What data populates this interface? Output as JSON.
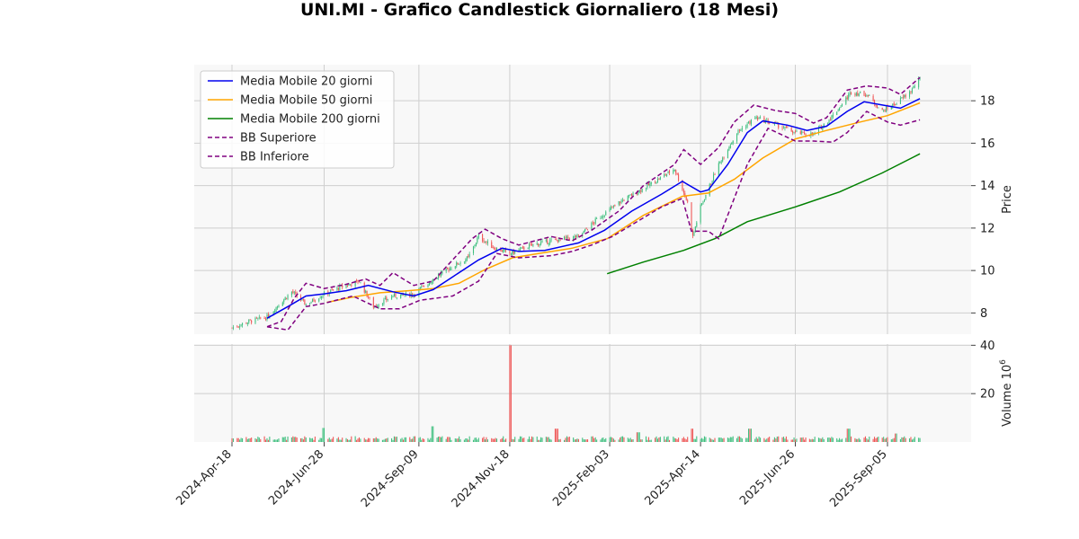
{
  "chart_data": {
    "type": "candlestick",
    "title": "UNI.MI - Grafico Candlestick Giornaliero (18 Mesi)",
    "ylabel_price": "Price",
    "ylabel_volume": "Volume",
    "volume_multiplier_base": "10",
    "volume_multiplier_exp": "6",
    "price_ylim": [
      7.0,
      19.7
    ],
    "price_yticks": [
      8,
      10,
      12,
      14,
      16,
      18
    ],
    "volume_ylim": [
      0,
      40.5
    ],
    "volume_yticks": [
      20,
      40
    ],
    "x_range": [
      "2024-04-18",
      "2025-09-30"
    ],
    "x_ticks": [
      "2024-Apr-18",
      "2024-Jun-28",
      "2024-Sep-09",
      "2024-Nov-18",
      "2025-Feb-03",
      "2025-Apr-14",
      "2025-Jun-26",
      "2025-Sep-05"
    ],
    "x_tick_dates": [
      "2024-04-18",
      "2024-06-28",
      "2024-09-09",
      "2024-11-18",
      "2025-02-03",
      "2025-04-14",
      "2025-06-26",
      "2025-09-05"
    ],
    "grid": true,
    "legend_position": "top-left",
    "colors": {
      "up": "#3fbf7f",
      "down": "#ef5555",
      "ma20": "#0000ee",
      "ma50": "#ffa500",
      "ma200": "#008000",
      "bb": "#800080"
    },
    "legend": [
      {
        "label": "Media Mobile 20 giorni",
        "color": "#0000ee",
        "dashed": false
      },
      {
        "label": "Media Mobile 50 giorni",
        "color": "#ffa500",
        "dashed": false
      },
      {
        "label": "Media Mobile 200 giorni",
        "color": "#008000",
        "dashed": false
      },
      {
        "label": "BB Superiore",
        "color": "#800080",
        "dashed": true
      },
      {
        "label": "BB Inferiore",
        "color": "#800080",
        "dashed": true
      }
    ],
    "close_path": [
      [
        "2024-04-18",
        7.3
      ],
      [
        "2024-05-01",
        7.6
      ],
      [
        "2024-05-15",
        7.8
      ],
      [
        "2024-05-24",
        8.4
      ],
      [
        "2024-06-03",
        9.0
      ],
      [
        "2024-06-14",
        8.4
      ],
      [
        "2024-06-28",
        8.9
      ],
      [
        "2024-07-10",
        9.2
      ],
      [
        "2024-07-25",
        9.5
      ],
      [
        "2024-08-05",
        8.3
      ],
      [
        "2024-08-20",
        8.8
      ],
      [
        "2024-09-05",
        8.9
      ],
      [
        "2024-09-20",
        9.6
      ],
      [
        "2024-10-05",
        10.2
      ],
      [
        "2024-10-17",
        10.6
      ],
      [
        "2024-10-25",
        11.6
      ],
      [
        "2024-11-05",
        11.1
      ],
      [
        "2024-11-18",
        10.8
      ],
      [
        "2024-12-05",
        11.2
      ],
      [
        "2024-12-20",
        11.4
      ],
      [
        "2025-01-10",
        11.6
      ],
      [
        "2025-01-24",
        12.4
      ],
      [
        "2025-02-10",
        13.2
      ],
      [
        "2025-02-24",
        13.7
      ],
      [
        "2025-03-10",
        14.2
      ],
      [
        "2025-03-25",
        14.8
      ],
      [
        "2025-04-04",
        13.2
      ],
      [
        "2025-04-08",
        11.6
      ],
      [
        "2025-04-14",
        13.0
      ],
      [
        "2025-04-28",
        15.0
      ],
      [
        "2025-05-12",
        16.5
      ],
      [
        "2025-05-26",
        17.2
      ],
      [
        "2025-06-10",
        16.9
      ],
      [
        "2025-06-26",
        16.5
      ],
      [
        "2025-07-10",
        16.4
      ],
      [
        "2025-07-25",
        17.3
      ],
      [
        "2025-08-08",
        18.4
      ],
      [
        "2025-08-20",
        18.3
      ],
      [
        "2025-09-01",
        17.5
      ],
      [
        "2025-09-12",
        17.9
      ],
      [
        "2025-09-22",
        18.4
      ],
      [
        "2025-09-30",
        19.0
      ]
    ],
    "ma20": [
      [
        "2024-05-15",
        7.75
      ],
      [
        "2024-05-31",
        8.3
      ],
      [
        "2024-06-14",
        8.8
      ],
      [
        "2024-06-28",
        8.9
      ],
      [
        "2024-07-15",
        9.05
      ],
      [
        "2024-08-01",
        9.3
      ],
      [
        "2024-08-20",
        9.0
      ],
      [
        "2024-09-05",
        8.8
      ],
      [
        "2024-09-20",
        9.1
      ],
      [
        "2024-10-05",
        9.7
      ],
      [
        "2024-10-25",
        10.5
      ],
      [
        "2024-11-12",
        11.05
      ],
      [
        "2024-11-25",
        10.9
      ],
      [
        "2024-12-15",
        10.95
      ],
      [
        "2025-01-10",
        11.3
      ],
      [
        "2025-01-30",
        11.9
      ],
      [
        "2025-02-20",
        12.8
      ],
      [
        "2025-03-15",
        13.6
      ],
      [
        "2025-03-31",
        14.2
      ],
      [
        "2025-04-14",
        13.7
      ],
      [
        "2025-04-20",
        13.8
      ],
      [
        "2025-05-05",
        15.0
      ],
      [
        "2025-05-20",
        16.5
      ],
      [
        "2025-06-01",
        17.05
      ],
      [
        "2025-06-20",
        16.85
      ],
      [
        "2025-07-05",
        16.6
      ],
      [
        "2025-07-20",
        16.8
      ],
      [
        "2025-08-05",
        17.5
      ],
      [
        "2025-08-18",
        17.95
      ],
      [
        "2025-09-01",
        17.8
      ],
      [
        "2025-09-15",
        17.65
      ],
      [
        "2025-09-30",
        18.1
      ]
    ],
    "ma50": [
      [
        "2024-06-30",
        8.5
      ],
      [
        "2024-07-20",
        8.75
      ],
      [
        "2024-08-10",
        8.95
      ],
      [
        "2024-09-01",
        9.05
      ],
      [
        "2024-09-20",
        9.15
      ],
      [
        "2024-10-10",
        9.4
      ],
      [
        "2024-10-30",
        10.05
      ],
      [
        "2024-11-20",
        10.6
      ],
      [
        "2024-12-10",
        10.8
      ],
      [
        "2025-01-05",
        11.05
      ],
      [
        "2025-02-01",
        11.5
      ],
      [
        "2025-03-01",
        12.6
      ],
      [
        "2025-03-31",
        13.5
      ],
      [
        "2025-04-20",
        13.65
      ],
      [
        "2025-05-10",
        14.3
      ],
      [
        "2025-06-01",
        15.3
      ],
      [
        "2025-06-26",
        16.2
      ],
      [
        "2025-07-20",
        16.6
      ],
      [
        "2025-08-15",
        17.0
      ],
      [
        "2025-09-05",
        17.3
      ],
      [
        "2025-09-30",
        17.9
      ]
    ],
    "ma200": [
      [
        "2025-02-01",
        9.85
      ],
      [
        "2025-03-01",
        10.4
      ],
      [
        "2025-04-01",
        10.95
      ],
      [
        "2025-04-25",
        11.5
      ],
      [
        "2025-05-20",
        12.3
      ],
      [
        "2025-06-26",
        13.0
      ],
      [
        "2025-07-30",
        13.7
      ],
      [
        "2025-09-01",
        14.6
      ],
      [
        "2025-09-30",
        15.5
      ]
    ],
    "bb_upper": [
      [
        "2024-05-15",
        7.35
      ],
      [
        "2024-05-26",
        7.6
      ],
      [
        "2024-06-05",
        8.7
      ],
      [
        "2024-06-14",
        9.4
      ],
      [
        "2024-06-28",
        9.15
      ],
      [
        "2024-07-15",
        9.35
      ],
      [
        "2024-07-30",
        9.6
      ],
      [
        "2024-08-10",
        9.3
      ],
      [
        "2024-08-20",
        9.9
      ],
      [
        "2024-09-05",
        9.3
      ],
      [
        "2024-09-20",
        9.5
      ],
      [
        "2024-10-05",
        10.5
      ],
      [
        "2024-10-20",
        11.5
      ],
      [
        "2024-10-30",
        11.95
      ],
      [
        "2024-11-12",
        11.5
      ],
      [
        "2024-11-25",
        11.2
      ],
      [
        "2024-12-20",
        11.6
      ],
      [
        "2025-01-05",
        11.4
      ],
      [
        "2025-01-20",
        11.9
      ],
      [
        "2025-02-10",
        12.8
      ],
      [
        "2025-03-01",
        14.0
      ],
      [
        "2025-03-25",
        15.0
      ],
      [
        "2025-04-01",
        15.7
      ],
      [
        "2025-04-14",
        15.0
      ],
      [
        "2025-04-28",
        15.8
      ],
      [
        "2025-05-10",
        17.0
      ],
      [
        "2025-05-25",
        17.8
      ],
      [
        "2025-06-10",
        17.55
      ],
      [
        "2025-06-26",
        17.4
      ],
      [
        "2025-07-10",
        16.95
      ],
      [
        "2025-07-20",
        17.2
      ],
      [
        "2025-08-05",
        18.5
      ],
      [
        "2025-08-20",
        18.7
      ],
      [
        "2025-09-05",
        18.6
      ],
      [
        "2025-09-15",
        18.3
      ],
      [
        "2025-09-30",
        19.1
      ]
    ],
    "bb_lower": [
      [
        "2024-05-15",
        7.35
      ],
      [
        "2024-05-31",
        7.2
      ],
      [
        "2024-06-14",
        8.3
      ],
      [
        "2024-06-28",
        8.45
      ],
      [
        "2024-07-20",
        8.8
      ],
      [
        "2024-08-10",
        8.2
      ],
      [
        "2024-08-25",
        8.2
      ],
      [
        "2024-09-10",
        8.6
      ],
      [
        "2024-10-05",
        8.8
      ],
      [
        "2024-10-25",
        9.5
      ],
      [
        "2024-11-08",
        10.8
      ],
      [
        "2024-11-25",
        10.6
      ],
      [
        "2024-12-20",
        10.7
      ],
      [
        "2025-01-05",
        10.9
      ],
      [
        "2025-01-20",
        11.2
      ],
      [
        "2025-02-05",
        11.6
      ],
      [
        "2025-03-15",
        13.0
      ],
      [
        "2025-03-31",
        13.4
      ],
      [
        "2025-04-07",
        11.85
      ],
      [
        "2025-04-20",
        11.85
      ],
      [
        "2025-04-28",
        11.5
      ],
      [
        "2025-05-20",
        15.0
      ],
      [
        "2025-06-05",
        16.7
      ],
      [
        "2025-06-26",
        16.1
      ],
      [
        "2025-07-10",
        16.1
      ],
      [
        "2025-07-25",
        16.05
      ],
      [
        "2025-08-05",
        16.5
      ],
      [
        "2025-08-20",
        17.5
      ],
      [
        "2025-09-05",
        17.0
      ],
      [
        "2025-09-15",
        16.85
      ],
      [
        "2025-09-30",
        17.1
      ]
    ],
    "volume_spikes": [
      [
        "2024-06-28",
        5.8
      ],
      [
        "2024-09-20",
        6.5
      ],
      [
        "2024-11-18",
        40.0
      ],
      [
        "2024-12-24",
        5.5
      ],
      [
        "2025-02-25",
        4.0
      ],
      [
        "2025-04-07",
        5.5
      ],
      [
        "2025-05-22",
        5.5
      ],
      [
        "2025-08-06",
        5.5
      ],
      [
        "2025-09-12",
        3.5
      ]
    ]
  }
}
